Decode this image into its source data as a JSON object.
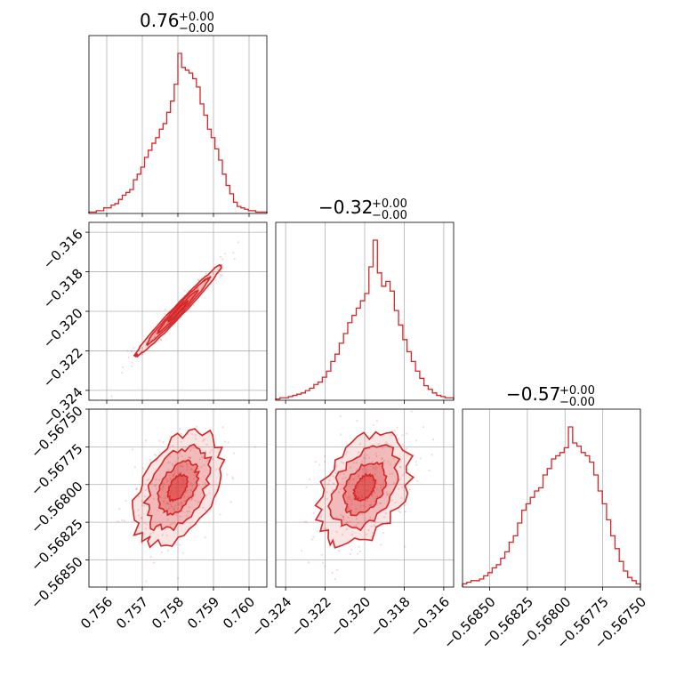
{
  "chart_data": {
    "type": "corner",
    "color": "#d62728",
    "parameters": [
      {
        "title_value": "0.76",
        "title_upper": "+0.00",
        "title_lower": "−0.00",
        "range": [
          0.7555,
          0.7605
        ],
        "ticks": [
          0.756,
          0.757,
          0.758,
          0.759,
          0.76
        ],
        "tick_labels": [
          "0.756",
          "0.757",
          "0.758",
          "0.759",
          "0.760"
        ],
        "mean": 0.758,
        "std": 0.00055
      },
      {
        "title_value": "−0.32",
        "title_upper": "+0.00",
        "title_lower": "−0.00",
        "range": [
          -0.3245,
          -0.3155
        ],
        "ticks": [
          -0.324,
          -0.322,
          -0.32,
          -0.318,
          -0.316
        ],
        "tick_labels": [
          "−0.324",
          "−0.322",
          "−0.320",
          "−0.318",
          "−0.316"
        ],
        "mean": -0.32,
        "std": 0.00105
      },
      {
        "title_value": "−0.57",
        "title_upper": "+0.00",
        "title_lower": "−0.00",
        "range": [
          -0.56868,
          -0.5675
        ],
        "ticks": [
          -0.5685,
          -0.56825,
          -0.568,
          -0.56775,
          -0.5675
        ],
        "tick_labels": [
          "−0.56850",
          "−0.56825",
          "−0.56800",
          "−0.56775",
          "−0.56750"
        ],
        "mean": -0.56802,
        "std": 0.00017
      }
    ],
    "histograms": [
      {
        "param": 0,
        "counts": [
          1,
          1,
          2,
          2,
          4,
          4,
          6,
          7,
          10,
          13,
          15,
          17,
          24,
          28,
          33,
          40,
          45,
          50,
          54,
          60,
          64,
          72,
          80,
          92,
          114,
          104,
          102,
          100,
          96,
          90,
          78,
          70,
          60,
          54,
          46,
          38,
          28,
          20,
          14,
          8,
          5,
          4,
          3,
          2,
          2,
          1,
          1,
          1
        ]
      },
      {
        "param": 1,
        "counts": [
          1,
          2,
          2,
          3,
          4,
          5,
          6,
          8,
          10,
          13,
          15,
          19,
          24,
          32,
          38,
          47,
          55,
          64,
          70,
          76,
          82,
          88,
          110,
          132,
          105,
          94,
          98,
          90,
          74,
          62,
          50,
          40,
          32,
          24,
          18,
          12,
          9,
          6,
          4,
          3,
          2,
          2
        ]
      },
      {
        "param": 2,
        "counts": [
          2,
          3,
          4,
          4,
          5,
          7,
          9,
          12,
          14,
          18,
          22,
          28,
          32,
          40,
          48,
          52,
          56,
          60,
          62,
          70,
          74,
          80,
          82,
          84,
          87,
          100,
          90,
          88,
          84,
          82,
          78,
          70,
          60,
          52,
          42,
          32,
          24,
          16,
          10,
          6,
          4,
          2
        ]
      }
    ],
    "correlations": {
      "0-1": 0.985,
      "0-2": 0.45,
      "1-2": 0.4
    },
    "grid": true
  }
}
